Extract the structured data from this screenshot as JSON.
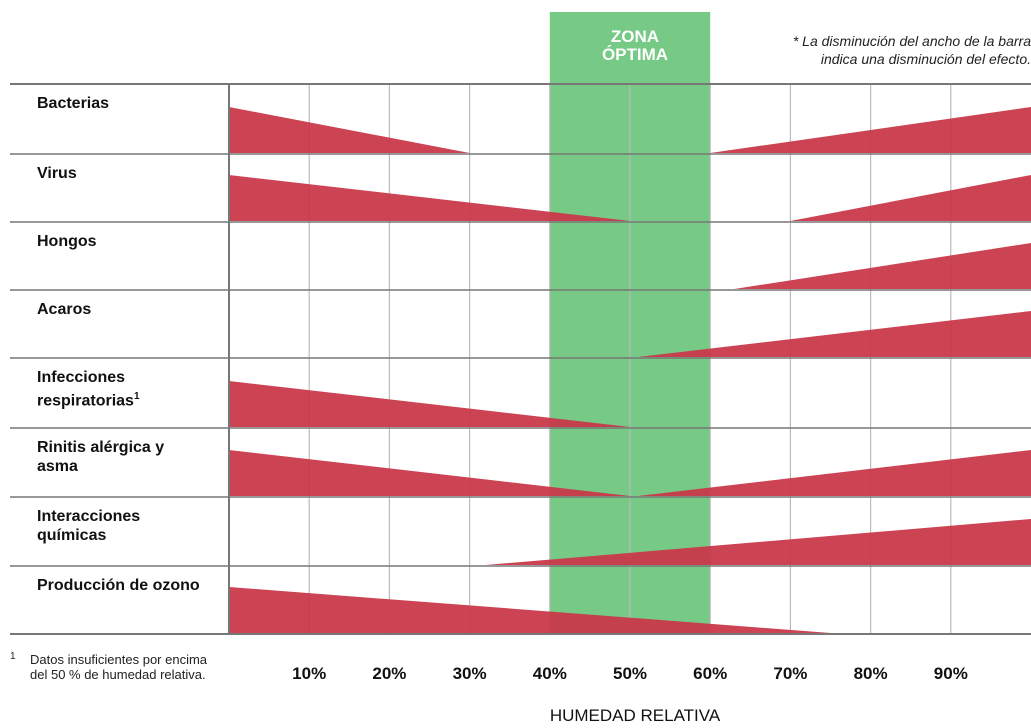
{
  "zone_label_line1": "ZONA",
  "zone_label_line2": "ÓPTIMA",
  "note_line1": "* La disminución del ancho de la barra",
  "note_line2": "indica una disminución del efecto.",
  "footnote_mark": "1",
  "footnote_text": "Datos insuficientes por encima del 50 % de humedad relativa.",
  "colors": {
    "bar": "#c9394a",
    "zone": "#77c986",
    "grid": "#bbbbbb",
    "frame": "#777777"
  },
  "chart_data": {
    "type": "area",
    "xlabel": "HUMEDAD RELATIVA",
    "xlim": [
      0,
      100
    ],
    "optimal_zone": [
      40,
      60
    ],
    "ticks": [
      10,
      20,
      30,
      40,
      50,
      60,
      70,
      80,
      90
    ],
    "tick_labels": [
      "10%",
      "20%",
      "30%",
      "40%",
      "50%",
      "60%",
      "70%",
      "80%",
      "90%"
    ],
    "rows": [
      {
        "label": "Bacterias",
        "low": [
          0,
          30
        ],
        "high": [
          60,
          100
        ]
      },
      {
        "label": "Virus",
        "low": [
          0,
          50
        ],
        "high": [
          70,
          100
        ]
      },
      {
        "label": "Hongos",
        "low": null,
        "high": [
          63,
          100
        ]
      },
      {
        "label": "Acaros",
        "low": null,
        "high": [
          51,
          100
        ]
      },
      {
        "label": "Infecciones respiratorias",
        "label_sup": "1",
        "low": [
          0,
          50
        ],
        "high": null
      },
      {
        "label": "Rinitis alérgica y asma",
        "low": [
          0,
          50
        ],
        "high": [
          51,
          100
        ]
      },
      {
        "label": "Interacciones químicas",
        "low": null,
        "high": [
          32,
          100
        ]
      },
      {
        "label": "Producción de ozono",
        "low": [
          0,
          75
        ],
        "high": null
      }
    ]
  }
}
